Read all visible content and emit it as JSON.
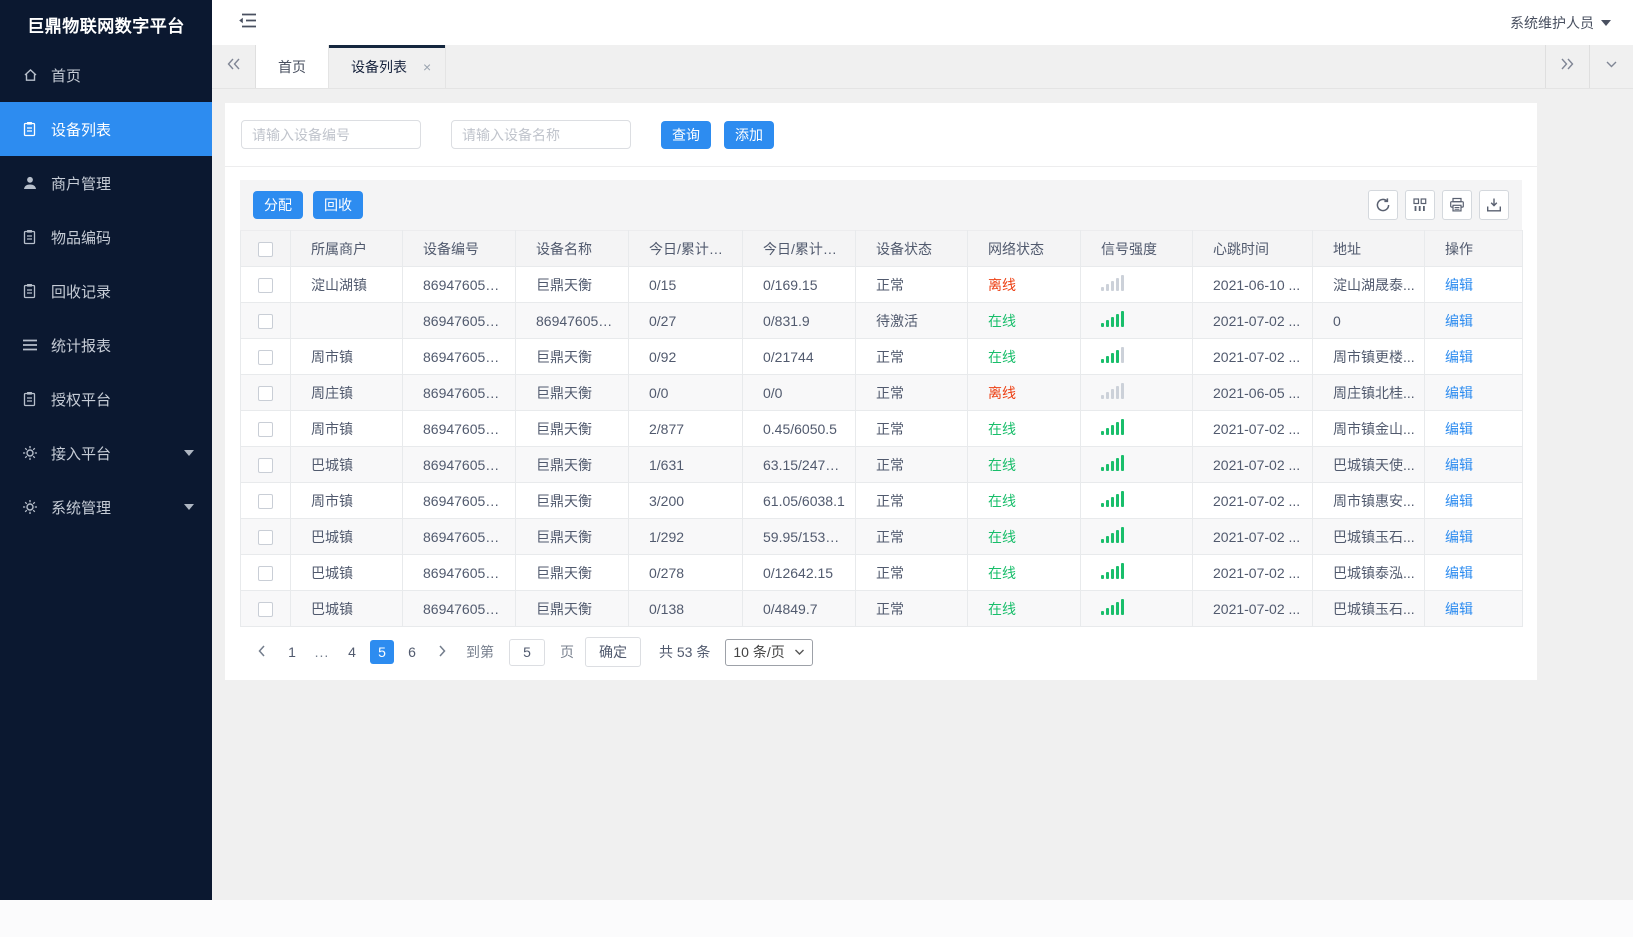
{
  "colors": {
    "primary": "#2d8cf0",
    "online": "#19be6b",
    "offline": "#ed4014",
    "sidebar_bg": "#0b1830"
  },
  "app": {
    "title": "巨鼎物联网数字平台",
    "user_role": "系统维护人员"
  },
  "sidebar": {
    "items": [
      {
        "key": "home",
        "icon": "home",
        "label": "首页",
        "active": false,
        "caret": false
      },
      {
        "key": "device-list",
        "icon": "clipboard",
        "label": "设备列表",
        "active": true,
        "caret": false
      },
      {
        "key": "merchant-mgmt",
        "icon": "user",
        "label": "商户管理",
        "active": false,
        "caret": false
      },
      {
        "key": "item-code",
        "icon": "clipboard",
        "label": "物品编码",
        "active": false,
        "caret": false
      },
      {
        "key": "recycle-record",
        "icon": "clipboard",
        "label": "回收记录",
        "active": false,
        "caret": false
      },
      {
        "key": "stats-report",
        "icon": "menu",
        "label": "统计报表",
        "active": false,
        "caret": false
      },
      {
        "key": "auth-platform",
        "icon": "clipboard",
        "label": "授权平台",
        "active": false,
        "caret": false
      },
      {
        "key": "access-platform",
        "icon": "gear",
        "label": "接入平台",
        "active": false,
        "caret": true
      },
      {
        "key": "system-mgmt",
        "icon": "gear",
        "label": "系统管理",
        "active": false,
        "caret": true
      }
    ]
  },
  "tabs": {
    "close_glyph": "×",
    "items": [
      {
        "key": "home",
        "label": "首页",
        "active": false,
        "closable": false
      },
      {
        "key": "device-list",
        "label": "设备列表",
        "active": true,
        "closable": true
      }
    ]
  },
  "search": {
    "device_no_placeholder": "请输入设备编号",
    "device_name_placeholder": "请输入设备名称",
    "query_label": "查询",
    "add_label": "添加"
  },
  "toolbar": {
    "assign_label": "分配",
    "recycle_label": "回收",
    "icons": [
      "refresh",
      "columns",
      "print",
      "download"
    ]
  },
  "table": {
    "columns": [
      "所属商户",
      "设备编号",
      "设备名称",
      "今日/累计称...",
      "今日/累计重...",
      "设备状态",
      "网络状态",
      "信号强度",
      "心跳时间",
      "地址",
      "操作"
    ],
    "edit_label": "编辑",
    "rows": [
      {
        "merchant": "淀山湖镇",
        "device_no": "8694760552...",
        "device_name": "巨鼎天衡",
        "today_total_count": "0/15",
        "today_total_weight": "0/169.15",
        "device_status": "正常",
        "network_status": "离线",
        "network_state": "offline",
        "signal_level": 0,
        "heartbeat": "2021-06-10 ...",
        "address": "淀山湖晟泰..."
      },
      {
        "merchant": "",
        "device_no": "8694760552...",
        "device_name": "8694760552...",
        "today_total_count": "0/27",
        "today_total_weight": "0/831.9",
        "device_status": "待激活",
        "network_status": "在线",
        "network_state": "online",
        "signal_level": 5,
        "heartbeat": "2021-07-02 ...",
        "address": "0"
      },
      {
        "merchant": "周市镇",
        "device_no": "8694760552...",
        "device_name": "巨鼎天衡",
        "today_total_count": "0/92",
        "today_total_weight": "0/21744",
        "device_status": "正常",
        "network_status": "在线",
        "network_state": "online",
        "signal_level": 4,
        "heartbeat": "2021-07-02 ...",
        "address": "周市镇更楼..."
      },
      {
        "merchant": "周庄镇",
        "device_no": "8694760552...",
        "device_name": "巨鼎天衡",
        "today_total_count": "0/0",
        "today_total_weight": "0/0",
        "device_status": "正常",
        "network_status": "离线",
        "network_state": "offline",
        "signal_level": 0,
        "heartbeat": "2021-06-05 ...",
        "address": "周庄镇北桂..."
      },
      {
        "merchant": "周市镇",
        "device_no": "8694760552...",
        "device_name": "巨鼎天衡",
        "today_total_count": "2/877",
        "today_total_weight": "0.45/6050.5",
        "device_status": "正常",
        "network_status": "在线",
        "network_state": "online",
        "signal_level": 5,
        "heartbeat": "2021-07-02 ...",
        "address": "周市镇金山..."
      },
      {
        "merchant": "巴城镇",
        "device_no": "8694760552...",
        "device_name": "巨鼎天衡",
        "today_total_count": "1/631",
        "today_total_weight": "63.15/24785...",
        "device_status": "正常",
        "network_status": "在线",
        "network_state": "online",
        "signal_level": 5,
        "heartbeat": "2021-07-02 ...",
        "address": "巴城镇天使..."
      },
      {
        "merchant": "周市镇",
        "device_no": "8694760552...",
        "device_name": "巨鼎天衡",
        "today_total_count": "3/200",
        "today_total_weight": "61.05/6038.1",
        "device_status": "正常",
        "network_status": "在线",
        "network_state": "online",
        "signal_level": 5,
        "heartbeat": "2021-07-02 ...",
        "address": "周市镇惠安..."
      },
      {
        "merchant": "巴城镇",
        "device_no": "8694760551...",
        "device_name": "巨鼎天衡",
        "today_total_count": "1/292",
        "today_total_weight": "59.95/15382...",
        "device_status": "正常",
        "network_status": "在线",
        "network_state": "online",
        "signal_level": 5,
        "heartbeat": "2021-07-02 ...",
        "address": "巴城镇玉石..."
      },
      {
        "merchant": "巴城镇",
        "device_no": "8694760552...",
        "device_name": "巨鼎天衡",
        "today_total_count": "0/278",
        "today_total_weight": "0/12642.15",
        "device_status": "正常",
        "network_status": "在线",
        "network_state": "online",
        "signal_level": 5,
        "heartbeat": "2021-07-02 ...",
        "address": "巴城镇泰泓..."
      },
      {
        "merchant": "巴城镇",
        "device_no": "8694760551...",
        "device_name": "巨鼎天衡",
        "today_total_count": "0/138",
        "today_total_weight": "0/4849.7",
        "device_status": "正常",
        "network_status": "在线",
        "network_state": "online",
        "signal_level": 5,
        "heartbeat": "2021-07-02 ...",
        "address": "巴城镇玉石..."
      }
    ]
  },
  "pagination": {
    "pages": [
      {
        "label": "1",
        "active": false
      },
      {
        "label": "...",
        "ellipsis": true
      },
      {
        "label": "4",
        "active": false
      },
      {
        "label": "5",
        "active": true
      },
      {
        "label": "6",
        "active": false
      }
    ],
    "goto_label": "到第",
    "goto_value": "5",
    "page_unit_label": "页",
    "confirm_label": "确定",
    "total_label": "共 53 条",
    "per_page_label": "10 条/页"
  }
}
